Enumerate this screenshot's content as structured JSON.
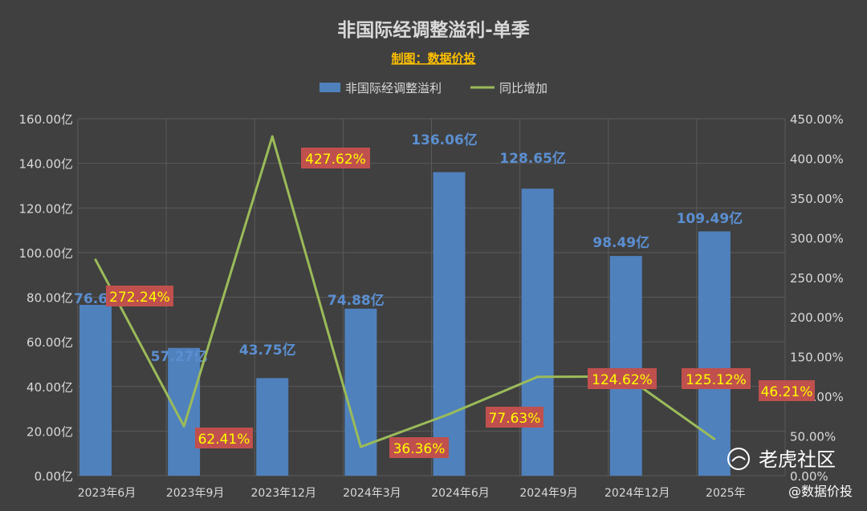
{
  "chart_data": {
    "type": "bar",
    "title": "非国际经调整溢利-单季",
    "subtitle": "制图：数据价投",
    "categories": [
      "2023年6月",
      "2023年9月",
      "2023年12月",
      "2024年3月",
      "2024年6月",
      "2024年9月",
      "2024年12月",
      "2025年3月"
    ],
    "category_labels": [
      "2023年6月",
      "2023年9月",
      "2023年12月",
      "2024年3月",
      "2024年6月",
      "2024年9月",
      "2024年12月",
      "2025年"
    ],
    "series": [
      {
        "name": "非国际经调整溢利",
        "type": "bar",
        "axis": "left",
        "values": [
          76.6,
          57.27,
          43.75,
          74.88,
          136.06,
          128.65,
          98.49,
          109.49
        ],
        "labels": [
          "76.60",
          "57.27亿",
          "43.75亿",
          "74.88亿",
          "136.06亿",
          "128.65亿",
          "98.49亿",
          "109.49亿"
        ]
      },
      {
        "name": "同比增加",
        "type": "line",
        "axis": "right",
        "values": [
          272.24,
          62.41,
          427.62,
          36.36,
          77.63,
          124.62,
          125.12,
          46.21
        ],
        "labels": [
          "272.24%",
          "62.41%",
          "427.62%",
          "36.36%",
          "77.63%",
          "124.62%",
          "125.12%",
          "46.21%"
        ]
      }
    ],
    "y_left": {
      "min": 0,
      "max": 160,
      "step": 20,
      "tick_labels": [
        "0.00亿",
        "20.00亿",
        "40.00亿",
        "60.00亿",
        "80.00亿",
        "100.00亿",
        "120.00亿",
        "140.00亿",
        "160.00亿"
      ]
    },
    "y_right": {
      "min": 0,
      "max": 450,
      "step": 50,
      "tick_labels": [
        "0.00%",
        "50.00%",
        "100.00%",
        "150.00%",
        "200.00%",
        "250.00%",
        "300.00%",
        "350.00%",
        "400.00%",
        "450.00%"
      ]
    },
    "grid": true,
    "legend_position": "top",
    "colors": {
      "background": "#404040",
      "bar": "#4f81bd",
      "bar_label": "#5b8fd1",
      "line": "#9bbb59",
      "line_label_bg": "#c0504d",
      "line_label_text": "#ffff00",
      "subtitle": "#ffc000",
      "text": "#d9d9d9",
      "grid": "#5a5a5a"
    }
  },
  "watermarks": {
    "brand": "老虎社区",
    "handle": "@数据价投"
  }
}
